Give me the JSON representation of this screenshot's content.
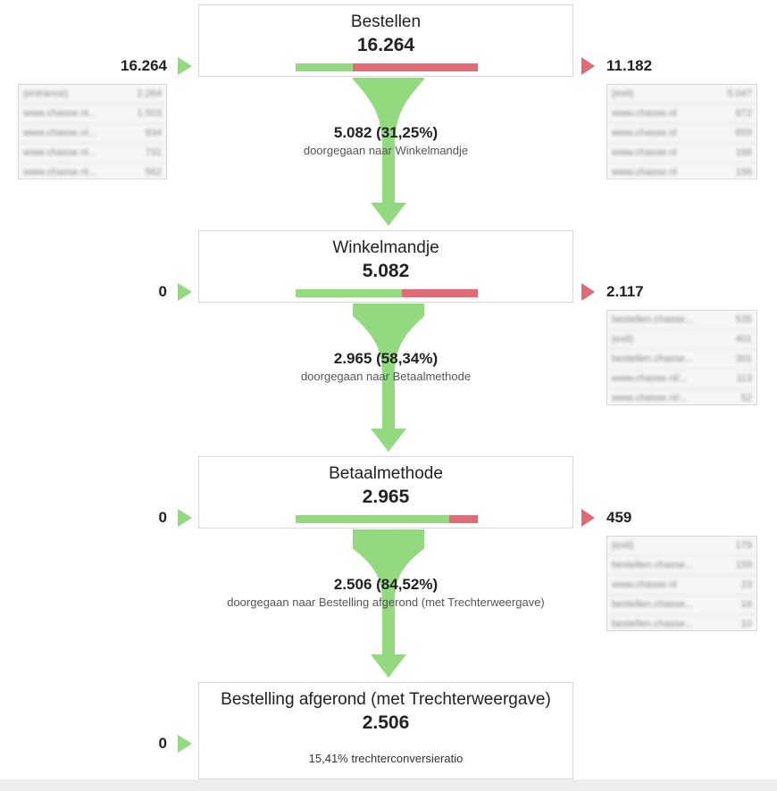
{
  "steps": [
    {
      "title": "Bestellen",
      "count": "16.264",
      "in": "16.264",
      "out": "11.182",
      "fill_fraction": 0.3125
    },
    {
      "title": "Winkelmandje",
      "count": "5.082",
      "in": "0",
      "out": "2.117",
      "fill_fraction": 0.5834
    },
    {
      "title": "Betaalmethode",
      "count": "2.965",
      "in": "0",
      "out": "459",
      "fill_fraction": 0.8452
    },
    {
      "title": "Bestelling afgerond (met Trechterweergave)",
      "count": "2.506",
      "in": "0",
      "conversion": "15,41% trechterconversieratio"
    }
  ],
  "flows": [
    {
      "value": "5.082 (31,25%)",
      "label": "doorgegaan naar Winkelmandje"
    },
    {
      "value": "2.965 (58,34%)",
      "label": "doorgegaan naar Betaalmethode"
    },
    {
      "value": "2.506 (84,52%)",
      "label": "doorgegaan naar Bestelling afgerond (met Trechterweergave)"
    }
  ],
  "entrance_sources": [
    {
      "label": "(entrance)",
      "value": "2.264"
    },
    {
      "label": "www.chasse.nl...",
      "value": "1.503"
    },
    {
      "label": "www.chasse.nl...",
      "value": "934"
    },
    {
      "label": "www.chasse.nl...",
      "value": "731"
    },
    {
      "label": "www.chasse.nl...",
      "value": "562"
    }
  ],
  "exit_tables": [
    [
      {
        "label": "(exit)",
        "value": "5.047"
      },
      {
        "label": "www.chasse.nl",
        "value": "672"
      },
      {
        "label": "www.chasse.nl",
        "value": "659"
      },
      {
        "label": "www.chasse.nl",
        "value": "166"
      },
      {
        "label": "www.chasse.nl",
        "value": "156"
      }
    ],
    [
      {
        "label": "bestellen.chasse...",
        "value": "535"
      },
      {
        "label": "(exit)",
        "value": "401"
      },
      {
        "label": "bestellen.chasse...",
        "value": "301"
      },
      {
        "label": "www.chasse.nl/...",
        "value": "113"
      },
      {
        "label": "www.chasse.nl/...",
        "value": "52"
      }
    ],
    [
      {
        "label": "(exit)",
        "value": "179"
      },
      {
        "label": "bestellen.chasse...",
        "value": "159"
      },
      {
        "label": "www.chasse.nl",
        "value": "23"
      },
      {
        "label": "bestellen.chasse...",
        "value": "16"
      },
      {
        "label": "bestellen.chasse...",
        "value": "10"
      }
    ]
  ],
  "colors": {
    "positive": "#93d97f",
    "negative": "#e06a76",
    "border": "#d7d7d7"
  }
}
